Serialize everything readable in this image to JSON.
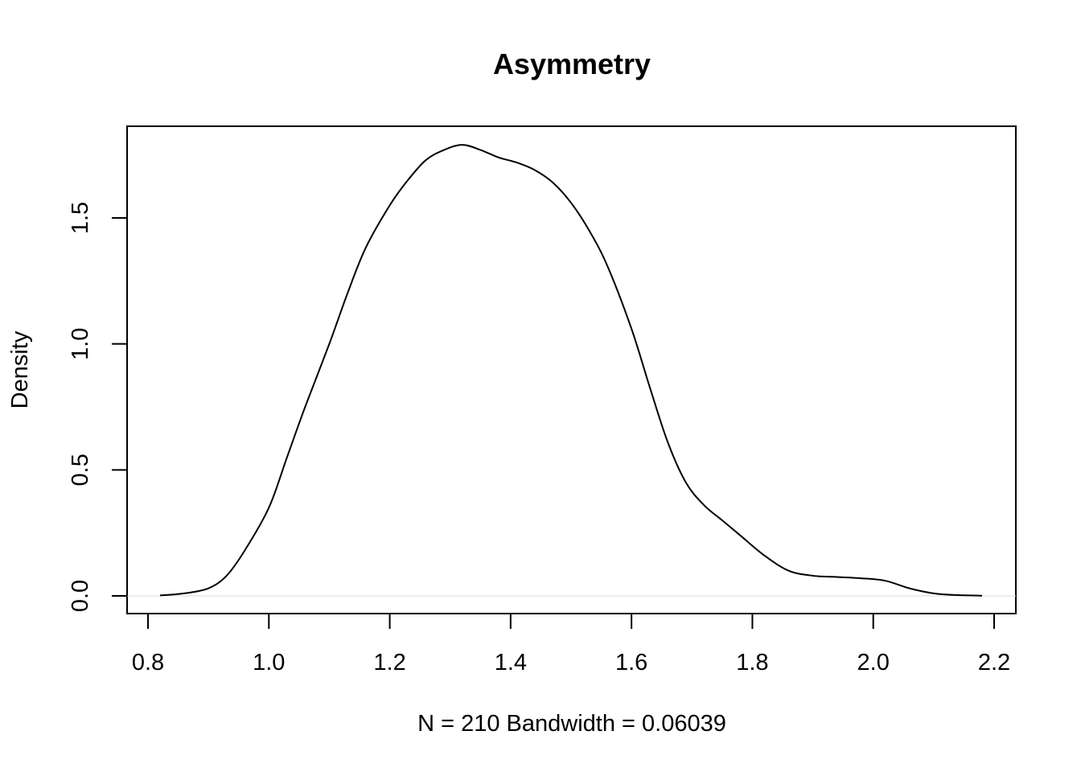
{
  "chart_data": {
    "type": "line",
    "title": "Asymmetry",
    "xlabel": "N = 210   Bandwidth = 0.06039",
    "ylabel": "Density",
    "xlim": [
      0.82,
      2.18
    ],
    "ylim": [
      0,
      1.8
    ],
    "x_ticks": [
      0.8,
      1.0,
      1.2,
      1.4,
      1.6,
      1.8,
      2.0,
      2.2
    ],
    "x_tick_labels": [
      "0.8",
      "1.0",
      "1.2",
      "1.4",
      "1.6",
      "1.8",
      "2.0",
      "2.2"
    ],
    "y_ticks": [
      0.0,
      0.5,
      1.0,
      1.5
    ],
    "y_tick_labels": [
      "0.0",
      "0.5",
      "1.0",
      "1.5"
    ],
    "zero_line": true,
    "grid": false,
    "series": [
      {
        "x": [
          0.82,
          0.86,
          0.9,
          0.93,
          0.96,
          1.0,
          1.03,
          1.06,
          1.1,
          1.13,
          1.16,
          1.2,
          1.23,
          1.26,
          1.29,
          1.32,
          1.35,
          1.38,
          1.41,
          1.44,
          1.47,
          1.5,
          1.53,
          1.56,
          1.6,
          1.63,
          1.66,
          1.69,
          1.72,
          1.75,
          1.78,
          1.82,
          1.86,
          1.9,
          1.94,
          1.98,
          2.02,
          2.06,
          2.1,
          2.14,
          2.18
        ],
        "y": [
          0.002,
          0.01,
          0.03,
          0.08,
          0.18,
          0.35,
          0.55,
          0.75,
          1.0,
          1.2,
          1.38,
          1.55,
          1.65,
          1.73,
          1.77,
          1.79,
          1.77,
          1.74,
          1.72,
          1.69,
          1.64,
          1.56,
          1.45,
          1.31,
          1.06,
          0.83,
          0.61,
          0.45,
          0.36,
          0.3,
          0.24,
          0.16,
          0.1,
          0.08,
          0.075,
          0.07,
          0.06,
          0.03,
          0.01,
          0.003,
          0.001
        ]
      }
    ]
  }
}
